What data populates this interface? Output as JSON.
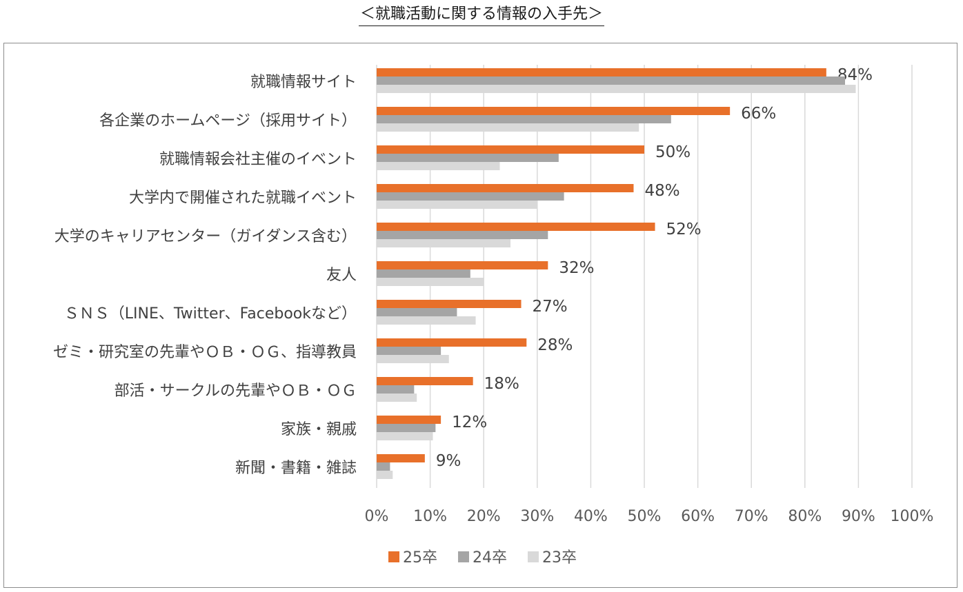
{
  "page": {
    "title": "＜就職活動に関する情報の入手先＞"
  },
  "colors": {
    "series_25": "#e8702a",
    "series_24": "#a5a5a5",
    "series_23": "#d9d9d9",
    "grid": "#d9d9d9",
    "frame": "#8c8c8c"
  },
  "chart_data": {
    "type": "bar",
    "orientation": "horizontal",
    "title": "＜就職活動に関する情報の入手先＞",
    "xlabel": "",
    "ylabel": "",
    "xlim": [
      0,
      100
    ],
    "x_tick_labels": [
      "0%",
      "10%",
      "20%",
      "30%",
      "40%",
      "50%",
      "60%",
      "70%",
      "80%",
      "90%",
      "100%"
    ],
    "grid": "vertical",
    "legend_position": "bottom",
    "categories": [
      "就職情報サイト",
      "各企業のホームページ（採用サイト）",
      "就職情報会社主催のイベント",
      "大学内で開催された就職イベント",
      "大学のキャリアセンター（ガイダンス含む）",
      "友人",
      "ＳＮＳ（LINE、Twitter、Facebookなど）",
      "ゼミ・研究室の先輩やＯＢ・ＯＧ、指導教員",
      "部活・サークルの先輩やＯＢ・ＯＧ",
      "家族・親戚",
      "新聞・書籍・雑誌"
    ],
    "series": [
      {
        "name": "25卒",
        "color": "#e8702a",
        "values": [
          84,
          66,
          50,
          48,
          52,
          32,
          27,
          28,
          18,
          12,
          9
        ],
        "data_labels": [
          "84%",
          "66%",
          "50%",
          "48%",
          "52%",
          "32%",
          "27%",
          "28%",
          "18%",
          "12%",
          "9%"
        ]
      },
      {
        "name": "24卒",
        "color": "#a5a5a5",
        "values": [
          87.5,
          55,
          34,
          35,
          32,
          17.5,
          15,
          12,
          7,
          11,
          2.5
        ]
      },
      {
        "name": "23卒",
        "color": "#d9d9d9",
        "values": [
          89.5,
          49,
          23,
          30,
          25,
          20,
          18.5,
          13.5,
          7.5,
          10.5,
          3
        ]
      }
    ]
  }
}
